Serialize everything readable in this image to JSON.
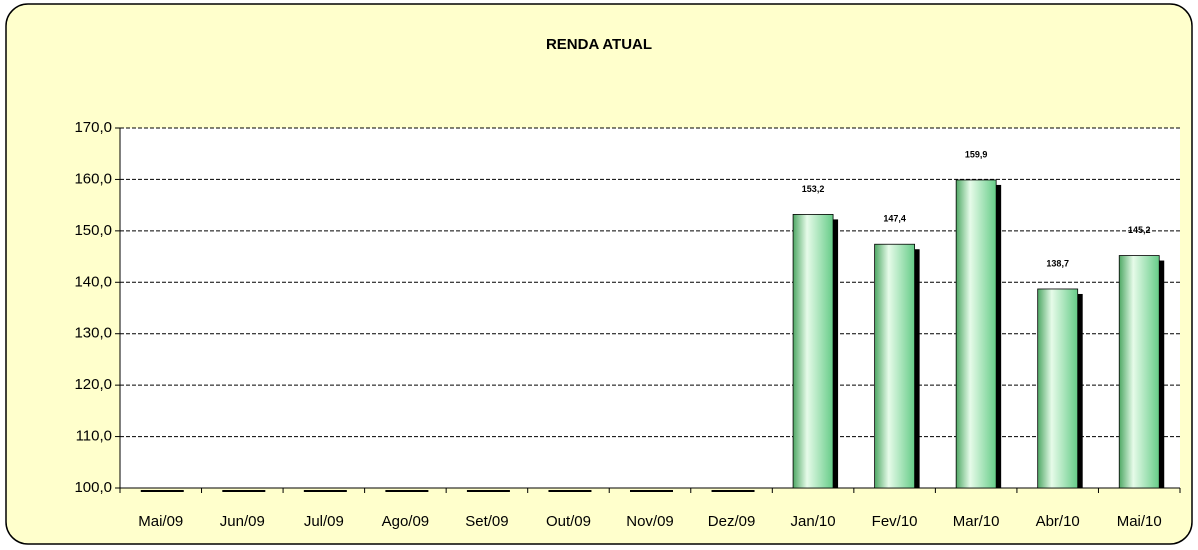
{
  "chart_data": {
    "type": "bar",
    "title": "RENDA ATUAL",
    "categories": [
      "Mai/09",
      "Jun/09",
      "Jul/09",
      "Ago/09",
      "Set/09",
      "Out/09",
      "Nov/09",
      "Dez/09",
      "Jan/10",
      "Fev/10",
      "Mar/10",
      "Abr/10",
      "Mai/10"
    ],
    "values": [
      null,
      null,
      null,
      null,
      null,
      null,
      null,
      null,
      153.2,
      147.4,
      159.9,
      138.7,
      145.2
    ],
    "value_labels": [
      null,
      null,
      null,
      null,
      null,
      null,
      null,
      null,
      "153,2",
      "147,4",
      "159,9",
      "138,7",
      "145,2"
    ],
    "color": "#66cc88",
    "ylim": [
      100,
      170
    ],
    "yticks": [
      {
        "value": 100,
        "label": "100,0"
      },
      {
        "value": 110,
        "label": "110,0"
      },
      {
        "value": 120,
        "label": "120,0"
      },
      {
        "value": 130,
        "label": "130,0"
      },
      {
        "value": 140,
        "label": "140,0"
      },
      {
        "value": 150,
        "label": "150,0"
      },
      {
        "value": 160,
        "label": "160,0"
      },
      {
        "value": 170,
        "label": "170,0"
      }
    ],
    "grid": true
  }
}
